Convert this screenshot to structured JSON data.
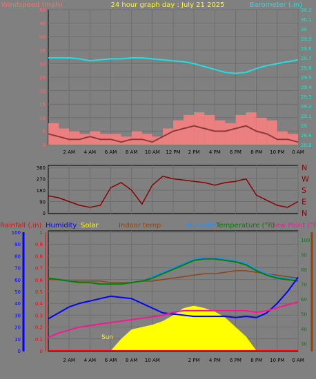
{
  "colors": {
    "background": "#808080",
    "frame": "#000000",
    "title": "#ffff00",
    "windspeed": "#ff6b6b",
    "gust": "#ff8080",
    "avgwind": "#8b3a3a",
    "barometer": "#20e0e0",
    "direction": "#8b0000",
    "rainfall": "#ff0000",
    "humidity": "#0000ff",
    "solar": "#ffff00",
    "indoor": "#8b4513",
    "humidex": "#1e90ff",
    "temperature": "#008000",
    "dewpoint": "#ff1493"
  },
  "panel_top": {
    "title": "24 hour graph day : July 21 2025",
    "left_label": "Windspeed (mph)",
    "right_label": "Barometer (.in)",
    "left_ticks": [
      "50",
      "45",
      "40",
      "35",
      "30",
      "25",
      "20",
      "15",
      "10",
      "5",
      "0"
    ],
    "right_ticks": [
      "30.2",
      "30.1",
      "30",
      "29.9",
      "29.8",
      "29.7",
      "29.6",
      "29.5",
      "29.4",
      "29.3",
      "29.2",
      "29.1",
      "29",
      "28.9",
      "28.8"
    ],
    "x_ticks": [
      "2 AM",
      "4 AM",
      "6 AM",
      "8 AM",
      "10 AM",
      "12 PM",
      "2 PM",
      "4 PM",
      "6 PM",
      "8 PM",
      "10 PM",
      "0 AM"
    ]
  },
  "panel_mid": {
    "left_ticks": [
      "360",
      "270",
      "180",
      "90",
      "0"
    ],
    "compass": [
      "N",
      "W",
      "S",
      "E",
      "N"
    ]
  },
  "panel_bottom": {
    "legend": {
      "rainfall": "Rainfall (.in)",
      "humidity": "Humidity",
      "solar": "Solar",
      "indoor": "Indoor temp",
      "humidex": "Humidex",
      "temperature": "Temperature (°F)",
      "dewpoint": "Dew Point (°F)"
    },
    "humidity_ticks": [
      "100",
      "90",
      "80",
      "70",
      "60",
      "50",
      "40",
      "30",
      "20",
      "10",
      "0"
    ],
    "rain_ticks": [
      "1",
      "0.9",
      "0.8",
      "0.7",
      "0.6",
      "0.5",
      "0.4",
      "0.3",
      "0.2",
      "0.1",
      "0"
    ],
    "temp_ticks": [
      "100",
      "90",
      "80",
      "70",
      "60",
      "50",
      "40",
      "30"
    ],
    "x_ticks": [
      "2 AM",
      "4 AM",
      "6 AM",
      "8 AM",
      "10 AM",
      "2 PM",
      "4 PM",
      "6 PM",
      "8 PM",
      "10 PM",
      "0 AM"
    ],
    "sun_label": "Sun"
  },
  "chart_data": {
    "type": "line",
    "hours": [
      0,
      1,
      2,
      3,
      4,
      5,
      6,
      7,
      8,
      9,
      10,
      11,
      12,
      13,
      14,
      15,
      16,
      17,
      18,
      19,
      20,
      21,
      22,
      23,
      24
    ],
    "barometer": [
      29.7,
      29.7,
      29.7,
      29.69,
      29.67,
      29.68,
      29.69,
      29.69,
      29.7,
      29.7,
      29.69,
      29.68,
      29.67,
      29.66,
      29.64,
      29.61,
      29.58,
      29.55,
      29.54,
      29.55,
      29.59,
      29.62,
      29.64,
      29.66,
      29.68
    ],
    "windspeed_gust": [
      8,
      6,
      5,
      4,
      5,
      4,
      4,
      3,
      5,
      4,
      3,
      6,
      9,
      11,
      12,
      11,
      9,
      8,
      11,
      12,
      10,
      9,
      5,
      4,
      3
    ],
    "windspeed_avg": [
      4,
      3,
      2,
      2,
      3,
      2,
      2,
      1,
      2,
      2,
      1,
      3,
      5,
      6,
      7,
      6,
      5,
      5,
      6,
      7,
      5,
      4,
      2,
      2,
      1
    ],
    "wind_direction": [
      135,
      120,
      90,
      60,
      45,
      60,
      200,
      240,
      180,
      70,
      220,
      290,
      270,
      260,
      250,
      240,
      220,
      240,
      250,
      270,
      140,
      100,
      60,
      45,
      90
    ],
    "humidity": [
      27,
      32,
      37,
      40,
      42,
      44,
      46,
      45,
      44,
      40,
      36,
      32,
      31,
      30,
      29,
      29,
      29,
      29,
      28,
      29,
      28,
      32,
      40,
      50,
      62
    ],
    "dewpoint": [
      34,
      37,
      39,
      41,
      42,
      43,
      44,
      45,
      46,
      47,
      48,
      49,
      51,
      52,
      52,
      52,
      52,
      52,
      52,
      52,
      51,
      52,
      54,
      56,
      58
    ],
    "temperature": [
      74,
      73,
      72,
      71,
      71,
      70,
      70,
      70,
      71,
      72,
      74,
      77,
      80,
      83,
      86,
      87,
      87,
      86,
      85,
      83,
      79,
      76,
      74,
      73,
      72
    ],
    "humidex": [
      74,
      73,
      72,
      71,
      71,
      70,
      70,
      70,
      71,
      72,
      75,
      78,
      81,
      84,
      87,
      88,
      88,
      87,
      86,
      84,
      80,
      77,
      75,
      74,
      73
    ],
    "indoor_temp": [
      73,
      73,
      72,
      72,
      72,
      72,
      71,
      71,
      71,
      72,
      72,
      73,
      74,
      75,
      76,
      77,
      77,
      78,
      79,
      79,
      78,
      77,
      76,
      75,
      74
    ],
    "solar": [
      0,
      0,
      0,
      0,
      0,
      0,
      0,
      10,
      18,
      20,
      22,
      25,
      30,
      36,
      38,
      36,
      33,
      28,
      20,
      12,
      0,
      0,
      0,
      0,
      0
    ],
    "rainfall": [
      0,
      0,
      0,
      0,
      0,
      0,
      0,
      0,
      0,
      0,
      0,
      0,
      0,
      0,
      0,
      0,
      0,
      0,
      0,
      0,
      0,
      0,
      0,
      0,
      0
    ],
    "ranges": {
      "wind": [
        0,
        50
      ],
      "baro": [
        28.8,
        30.2
      ],
      "dir": [
        0,
        360
      ],
      "humidity": [
        0,
        100
      ],
      "rain": [
        0,
        1
      ],
      "temp": [
        25,
        105
      ]
    }
  }
}
